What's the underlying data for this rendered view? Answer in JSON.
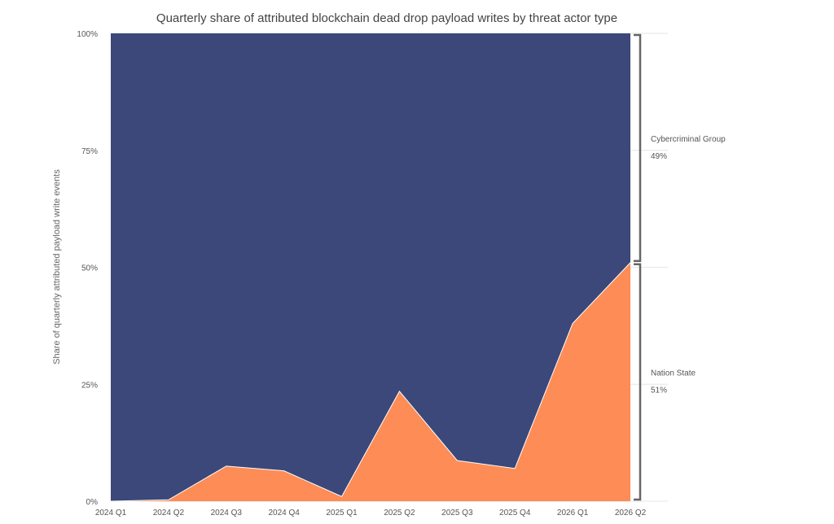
{
  "chart_data": {
    "type": "area",
    "stacked": true,
    "normalized": true,
    "title": "Quarterly share of attributed blockchain dead drop payload writes by threat actor type",
    "ylabel": "Share of quarterly attributed payload write events",
    "xlabel": "",
    "ylim": [
      0,
      100
    ],
    "y_ticks": [
      "0%",
      "25%",
      "50%",
      "75%",
      "100%"
    ],
    "y_tick_values": [
      0,
      25,
      50,
      75,
      100
    ],
    "categories": [
      "2024 Q1",
      "2024 Q2",
      "2024 Q3",
      "2024 Q4",
      "2025 Q1",
      "2025 Q2",
      "2025 Q3",
      "2025 Q4",
      "2026 Q1",
      "2026 Q2"
    ],
    "series": [
      {
        "name": "Nation State",
        "color": "#fd8c57",
        "values": [
          0,
          0.3,
          7.5,
          6.5,
          1,
          23.5,
          8.7,
          7,
          38,
          51
        ],
        "latest_share": "51%"
      },
      {
        "name": "Cybercriminal Group",
        "color": "#3b4879",
        "values": [
          100,
          99.7,
          92.5,
          93.5,
          99,
          76.5,
          91.3,
          93,
          62,
          49
        ],
        "latest_share": "49%"
      }
    ],
    "grid": true,
    "legend": "right-bracket"
  }
}
